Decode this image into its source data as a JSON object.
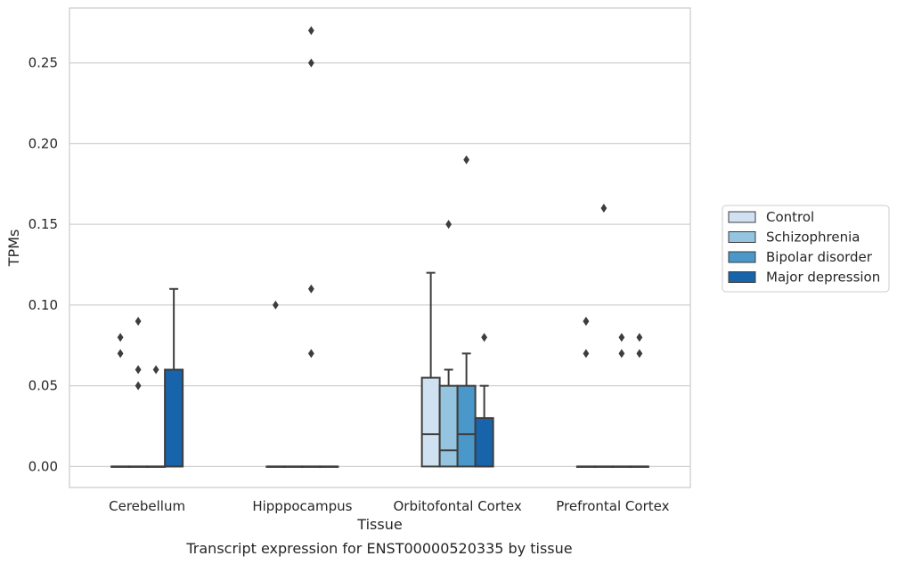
{
  "chart_data": {
    "type": "boxplot",
    "xlabel": "Tissue",
    "ylabel": "TPMs",
    "caption": "Transcript expression for ENST00000520335 by tissue",
    "ylim": [
      -0.013,
      0.284
    ],
    "yticks": [
      0.0,
      0.05,
      0.1,
      0.15,
      0.2,
      0.25
    ],
    "ytick_labels": [
      "0.00",
      "0.05",
      "0.10",
      "0.15",
      "0.20",
      "0.25"
    ],
    "grid": true,
    "legend_position": "right",
    "categories": [
      "Cerebellum",
      "Hipppocampus",
      "Orbitofontal Cortex",
      "Prefrontal Cortex"
    ],
    "series": [
      {
        "name": "Control",
        "color": "#d0e1f2",
        "boxes": [
          {
            "q1": 0,
            "median": 0,
            "q3": 0,
            "whisker_low": 0,
            "whisker_high": 0,
            "outliers": [
              0.07,
              0.08
            ]
          },
          {
            "q1": 0,
            "median": 0,
            "q3": 0,
            "whisker_low": 0,
            "whisker_high": 0,
            "outliers": [
              0.1
            ]
          },
          {
            "q1": 0,
            "median": 0.02,
            "q3": 0.055,
            "whisker_low": 0,
            "whisker_high": 0.12,
            "outliers": []
          },
          {
            "q1": 0,
            "median": 0,
            "q3": 0,
            "whisker_low": 0,
            "whisker_high": 0,
            "outliers": [
              0.07,
              0.09,
              0.09
            ]
          }
        ]
      },
      {
        "name": "Schizophrenia",
        "color": "#94c4df",
        "boxes": [
          {
            "q1": 0,
            "median": 0,
            "q3": 0,
            "whisker_low": 0,
            "whisker_high": 0,
            "outliers": [
              0.05,
              0.06,
              0.09
            ]
          },
          {
            "q1": 0,
            "median": 0,
            "q3": 0,
            "whisker_low": 0,
            "whisker_high": 0,
            "outliers": []
          },
          {
            "q1": 0,
            "median": 0.01,
            "q3": 0.05,
            "whisker_low": 0,
            "whisker_high": 0.06,
            "outliers": [
              0.15
            ]
          },
          {
            "q1": 0,
            "median": 0,
            "q3": 0,
            "whisker_low": 0,
            "whisker_high": 0,
            "outliers": [
              0.16
            ]
          }
        ]
      },
      {
        "name": "Bipolar disorder",
        "color": "#4a98c9",
        "boxes": [
          {
            "q1": 0,
            "median": 0,
            "q3": 0,
            "whisker_low": 0,
            "whisker_high": 0,
            "outliers": [
              0.06
            ]
          },
          {
            "q1": 0,
            "median": 0,
            "q3": 0,
            "whisker_low": 0,
            "whisker_high": 0,
            "outliers": [
              0.07,
              0.11,
              0.25,
              0.27
            ]
          },
          {
            "q1": 0,
            "median": 0.02,
            "q3": 0.05,
            "whisker_low": 0,
            "whisker_high": 0.07,
            "outliers": [
              0.19
            ]
          },
          {
            "q1": 0,
            "median": 0,
            "q3": 0,
            "whisker_low": 0,
            "whisker_high": 0,
            "outliers": [
              0.07,
              0.08
            ]
          }
        ]
      },
      {
        "name": "Major depression",
        "color": "#1764ab",
        "boxes": [
          {
            "q1": 0,
            "median": 0,
            "q3": 0.06,
            "whisker_low": 0,
            "whisker_high": 0.11,
            "outliers": []
          },
          {
            "q1": 0,
            "median": 0,
            "q3": 0,
            "whisker_low": 0,
            "whisker_high": 0,
            "outliers": []
          },
          {
            "q1": 0,
            "median": 0,
            "q3": 0.03,
            "whisker_low": 0,
            "whisker_high": 0.05,
            "outliers": [
              0.08
            ]
          },
          {
            "q1": 0,
            "median": 0,
            "q3": 0,
            "whisker_low": 0,
            "whisker_high": 0,
            "outliers": [
              0.07,
              0.08
            ]
          }
        ]
      }
    ]
  }
}
